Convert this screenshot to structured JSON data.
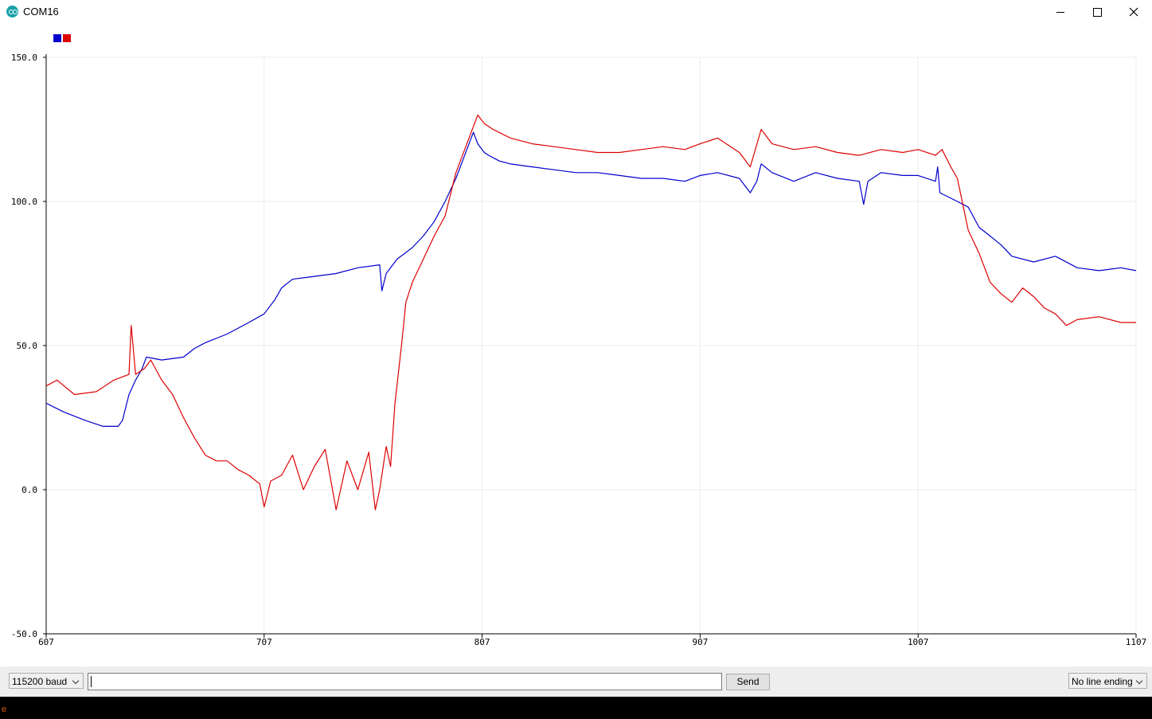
{
  "window": {
    "title": "COM16"
  },
  "colors": {
    "series1": "#0000cc",
    "series2": "#dd0000",
    "grid": "#ececec",
    "axis": "#000000"
  },
  "chart_data": {
    "type": "line",
    "xlim": [
      607,
      1107
    ],
    "ylim": [
      -50,
      150
    ],
    "x_ticks": [
      "607",
      "707",
      "807",
      "907",
      "1007",
      "1107"
    ],
    "y_ticks": [
      "150.0",
      "100.0",
      "50.0",
      "0.0",
      "-50.0"
    ],
    "grid": true,
    "legend": "top-left",
    "series": [
      {
        "color": "#0000cc",
        "points": [
          [
            607,
            30
          ],
          [
            615,
            27
          ],
          [
            625,
            24
          ],
          [
            633,
            22
          ],
          [
            640,
            22
          ],
          [
            642,
            24
          ],
          [
            645,
            33
          ],
          [
            648,
            38
          ],
          [
            651,
            42
          ],
          [
            653,
            46
          ],
          [
            660,
            45
          ],
          [
            670,
            46
          ],
          [
            675,
            49
          ],
          [
            680,
            51
          ],
          [
            690,
            54
          ],
          [
            700,
            58
          ],
          [
            707,
            61
          ],
          [
            712,
            66
          ],
          [
            715,
            70
          ],
          [
            720,
            73
          ],
          [
            730,
            74
          ],
          [
            740,
            75
          ],
          [
            750,
            77
          ],
          [
            760,
            78
          ],
          [
            761,
            69
          ],
          [
            763,
            75
          ],
          [
            768,
            80
          ],
          [
            775,
            84
          ],
          [
            780,
            88
          ],
          [
            785,
            93
          ],
          [
            790,
            100
          ],
          [
            795,
            108
          ],
          [
            800,
            118
          ],
          [
            803,
            124
          ],
          [
            805,
            120
          ],
          [
            808,
            117
          ],
          [
            810,
            116
          ],
          [
            815,
            114
          ],
          [
            820,
            113
          ],
          [
            830,
            112
          ],
          [
            840,
            111
          ],
          [
            850,
            110
          ],
          [
            860,
            110
          ],
          [
            870,
            109
          ],
          [
            880,
            108
          ],
          [
            890,
            108
          ],
          [
            900,
            107
          ],
          [
            907,
            109
          ],
          [
            915,
            110
          ],
          [
            925,
            108
          ],
          [
            930,
            103
          ],
          [
            933,
            107
          ],
          [
            935,
            113
          ],
          [
            940,
            110
          ],
          [
            950,
            107
          ],
          [
            960,
            110
          ],
          [
            970,
            108
          ],
          [
            980,
            107
          ],
          [
            982,
            99
          ],
          [
            984,
            107
          ],
          [
            990,
            110
          ],
          [
            1000,
            109
          ],
          [
            1007,
            109
          ],
          [
            1015,
            107
          ],
          [
            1016,
            112
          ],
          [
            1017,
            103
          ],
          [
            1025,
            100
          ],
          [
            1030,
            98
          ],
          [
            1035,
            91
          ],
          [
            1040,
            88
          ],
          [
            1045,
            85
          ],
          [
            1050,
            81
          ],
          [
            1060,
            79
          ],
          [
            1070,
            81
          ],
          [
            1080,
            77
          ],
          [
            1090,
            76
          ],
          [
            1100,
            77
          ],
          [
            1107,
            76
          ]
        ]
      },
      {
        "color": "#dd0000",
        "points": [
          [
            607,
            36
          ],
          [
            612,
            38
          ],
          [
            620,
            33
          ],
          [
            630,
            34
          ],
          [
            638,
            38
          ],
          [
            645,
            40
          ],
          [
            646,
            57
          ],
          [
            648,
            40
          ],
          [
            652,
            42
          ],
          [
            655,
            45
          ],
          [
            660,
            38
          ],
          [
            665,
            33
          ],
          [
            670,
            25
          ],
          [
            675,
            18
          ],
          [
            680,
            12
          ],
          [
            685,
            10
          ],
          [
            690,
            10
          ],
          [
            695,
            7
          ],
          [
            700,
            5
          ],
          [
            705,
            2
          ],
          [
            707,
            -6
          ],
          [
            710,
            3
          ],
          [
            715,
            5
          ],
          [
            720,
            12
          ],
          [
            725,
            0
          ],
          [
            730,
            8
          ],
          [
            735,
            14
          ],
          [
            740,
            -7
          ],
          [
            745,
            10
          ],
          [
            750,
            0
          ],
          [
            755,
            13
          ],
          [
            758,
            -7
          ],
          [
            760,
            0
          ],
          [
            763,
            15
          ],
          [
            765,
            8
          ],
          [
            767,
            30
          ],
          [
            770,
            50
          ],
          [
            772,
            65
          ],
          [
            775,
            72
          ],
          [
            780,
            80
          ],
          [
            785,
            88
          ],
          [
            790,
            95
          ],
          [
            795,
            110
          ],
          [
            800,
            120
          ],
          [
            805,
            130
          ],
          [
            808,
            127
          ],
          [
            812,
            125
          ],
          [
            820,
            122
          ],
          [
            830,
            120
          ],
          [
            840,
            119
          ],
          [
            850,
            118
          ],
          [
            860,
            117
          ],
          [
            870,
            117
          ],
          [
            880,
            118
          ],
          [
            890,
            119
          ],
          [
            900,
            118
          ],
          [
            907,
            120
          ],
          [
            915,
            122
          ],
          [
            925,
            117
          ],
          [
            930,
            112
          ],
          [
            935,
            125
          ],
          [
            940,
            120
          ],
          [
            950,
            118
          ],
          [
            960,
            119
          ],
          [
            970,
            117
          ],
          [
            980,
            116
          ],
          [
            990,
            118
          ],
          [
            1000,
            117
          ],
          [
            1007,
            118
          ],
          [
            1015,
            116
          ],
          [
            1018,
            118
          ],
          [
            1022,
            112
          ],
          [
            1025,
            108
          ],
          [
            1030,
            90
          ],
          [
            1035,
            82
          ],
          [
            1040,
            72
          ],
          [
            1045,
            68
          ],
          [
            1050,
            65
          ],
          [
            1055,
            70
          ],
          [
            1060,
            67
          ],
          [
            1065,
            63
          ],
          [
            1070,
            61
          ],
          [
            1075,
            57
          ],
          [
            1080,
            59
          ],
          [
            1090,
            60
          ],
          [
            1100,
            58
          ],
          [
            1107,
            58
          ]
        ]
      }
    ]
  },
  "controls": {
    "baud": "115200 baud",
    "send_label": "Send",
    "line_ending": "No line ending"
  },
  "console": {
    "text": "e"
  }
}
